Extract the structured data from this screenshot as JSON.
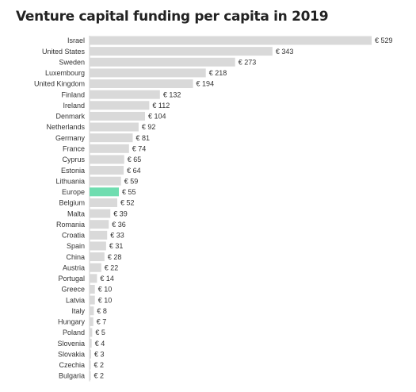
{
  "chart_data": {
    "type": "bar",
    "orientation": "horizontal",
    "title": "Venture capital funding per capita in 2019",
    "categories": [
      "Israel",
      "United States",
      "Sweden",
      "Luxembourg",
      "United Kingdom",
      "Finland",
      "Ireland",
      "Denmark",
      "Netherlands",
      "Germany",
      "France",
      "Cyprus",
      "Estonia",
      "Lithuania",
      "Europe",
      "Belgium",
      "Malta",
      "Romania",
      "Croatia",
      "Spain",
      "China",
      "Austria",
      "Portugal",
      "Greece",
      "Latvia",
      "Italy",
      "Hungary",
      "Poland",
      "Slovenia",
      "Slovakia",
      "Czechia",
      "Bulgaria"
    ],
    "values": [
      529,
      343,
      273,
      218,
      194,
      132,
      112,
      104,
      92,
      81,
      74,
      65,
      64,
      59,
      55,
      52,
      39,
      36,
      33,
      31,
      28,
      22,
      14,
      10,
      10,
      8,
      7,
      5,
      4,
      3,
      2,
      2
    ],
    "value_labels": [
      "€ 529",
      "€ 343",
      "€ 273",
      "€ 218",
      "€ 194",
      "€ 132",
      "€ 112",
      "€ 104",
      "€ 92",
      "€ 81",
      "€ 74",
      "€ 65",
      "€ 64",
      "€ 59",
      "€ 55",
      "€ 52",
      "€ 39",
      "€ 36",
      "€ 33",
      "€ 31",
      "€ 28",
      "€ 22",
      "€ 14",
      "€ 10",
      "€ 10",
      "€ 8",
      "€ 7",
      "€ 5",
      "€ 4",
      "€ 3",
      "€ 2",
      "€ 2"
    ],
    "xlim": [
      0,
      529
    ],
    "grid": false,
    "colors": {
      "default": "#d9d9d9",
      "highlight": "#6fddb0"
    },
    "highlight_category": "Europe"
  }
}
